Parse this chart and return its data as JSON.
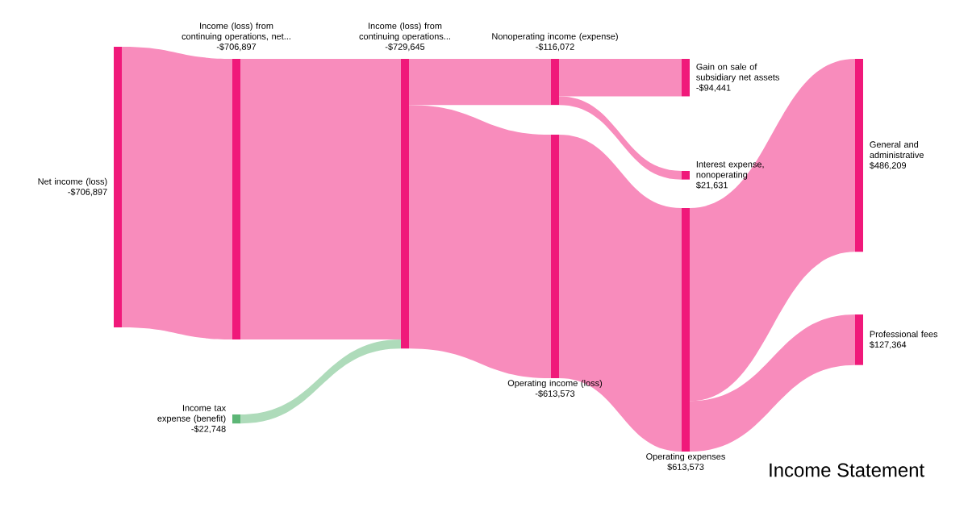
{
  "chart_data": {
    "type": "other",
    "title": "Income Statement",
    "categories": [
      "Net income (loss)",
      "Income tax expense (benefit)",
      "Income (loss) from continuing operations, net...",
      "Income (loss) from continuing operations...",
      "Nonoperating income (expense)",
      "Operating income (loss)",
      "Gain on sale of subsidiary net assets",
      "Interest expense, nonoperating",
      "Operating expenses",
      "General and administrative",
      "Professional fees"
    ],
    "values": [
      -706897,
      -22748,
      -706897,
      -729645,
      -116072,
      -613573,
      -94441,
      21631,
      613573,
      486209,
      127364
    ],
    "value_labels": [
      "-$706,897",
      "-$22,748",
      "-$706,897",
      "-$729,645",
      "-$116,072",
      "-$613,573",
      "-$94,441",
      "$21,631",
      "$613,573",
      "$486,209",
      "$127,364"
    ],
    "colors": [
      "#f0197a",
      "#5db676",
      "#f0197a",
      "#f0197a",
      "#f0197a",
      "#f0197a",
      "#f0197a",
      "#f0197a",
      "#f0197a",
      "#f0197a",
      "#f0197a"
    ]
  }
}
